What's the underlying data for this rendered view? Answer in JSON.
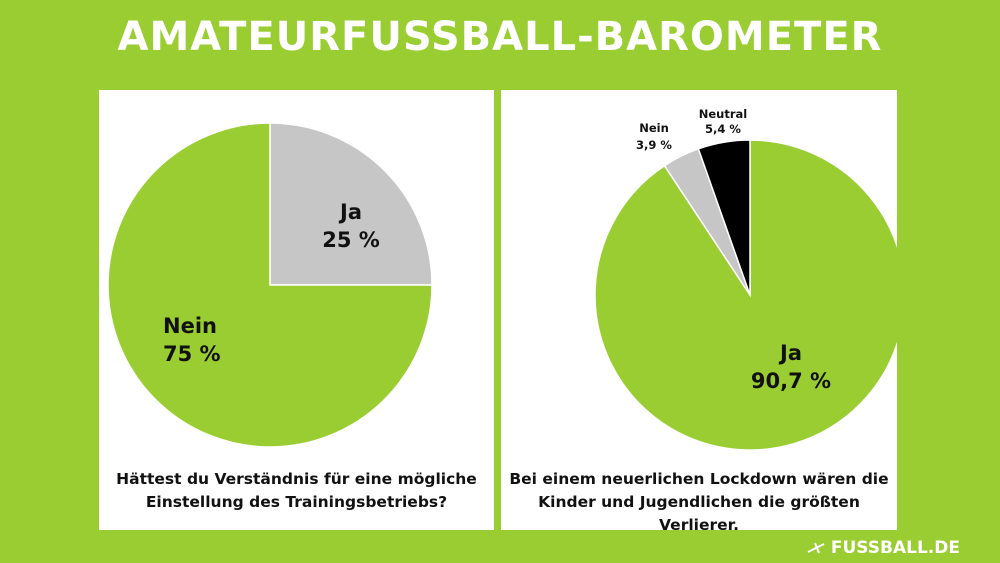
{
  "header": {
    "title": "AMATEURFUSSBALL-BAROMETER"
  },
  "colors": {
    "background": "#9ACD32",
    "green": "#9ACD32",
    "grey": "#C6C6C6",
    "black": "#000000",
    "panel": "#FFFFFF"
  },
  "chart_data": [
    {
      "type": "pie",
      "question_lines": [
        "Hättest du Verständnis für eine mögliche",
        "Einstellung des Trainingsbetriebs?"
      ],
      "slices": [
        {
          "label": "Ja",
          "value": 25,
          "value_text": "25 %",
          "color": "#C6C6C6"
        },
        {
          "label": "Nein",
          "value": 75,
          "value_text": "75 %",
          "color": "#9ACD32"
        }
      ]
    },
    {
      "type": "pie",
      "question_lines": [
        "Bei einem neuerlichen Lockdown wären die",
        "Kinder und Jugendlichen die größten Verlierer."
      ],
      "slices": [
        {
          "label": "Ja",
          "value": 90.7,
          "value_text": "90,7 %",
          "color": "#9ACD32"
        },
        {
          "label": "Nein",
          "value": 3.9,
          "value_text": "3,9 %",
          "color": "#C6C6C6"
        },
        {
          "label": "Neutral",
          "value": 5.4,
          "value_text": "5,4 %",
          "color": "#000000"
        }
      ]
    }
  ],
  "brand": {
    "text": "FUSSBALL.DE",
    "icon": "ball-arrow-icon"
  }
}
